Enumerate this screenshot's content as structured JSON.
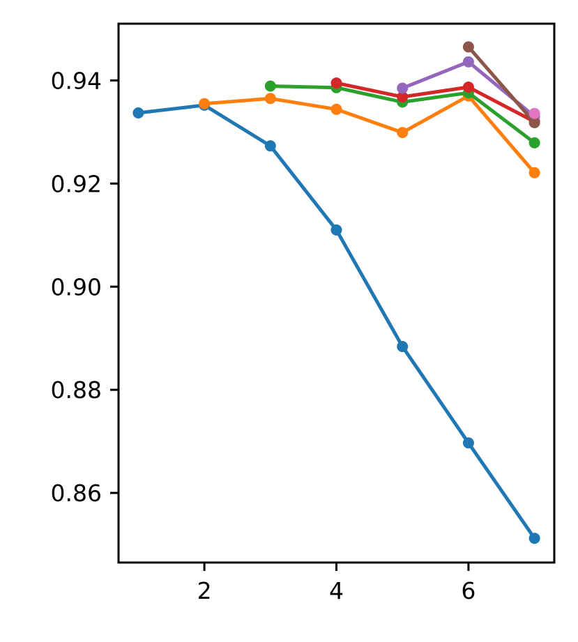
{
  "chart_data": {
    "type": "line",
    "title": "",
    "xlabel": "",
    "ylabel": "",
    "xlim": [
      0.7,
      7.3
    ],
    "ylim": [
      0.8465,
      0.951
    ],
    "xticks": [
      2,
      4,
      6
    ],
    "yticks": [
      0.86,
      0.88,
      0.9,
      0.92,
      0.94
    ],
    "xtick_labels": [
      "2",
      "4",
      "6"
    ],
    "ytick_labels": [
      "0.86",
      "0.88",
      "0.90",
      "0.92",
      "0.94"
    ],
    "grid": false,
    "legend": "none",
    "series": [
      {
        "color": "#1f77b4",
        "x": [
          1,
          2,
          3,
          4,
          5,
          6,
          7
        ],
        "y": [
          0.9337,
          0.9352,
          0.9273,
          0.911,
          0.8884,
          0.8697,
          0.8512
        ]
      },
      {
        "color": "#ff7f0e",
        "x": [
          2,
          3,
          4,
          5,
          6,
          7
        ],
        "y": [
          0.9355,
          0.9365,
          0.9344,
          0.9299,
          0.937,
          0.9221
        ]
      },
      {
        "color": "#2ca02c",
        "x": [
          3,
          4,
          5,
          6,
          7
        ],
        "y": [
          0.9389,
          0.9386,
          0.9358,
          0.9376,
          0.9279
        ]
      },
      {
        "color": "#d62728",
        "x": [
          4,
          5,
          6,
          7
        ],
        "y": [
          0.9395,
          0.9368,
          0.9387,
          0.932
        ]
      },
      {
        "color": "#9467bd",
        "x": [
          5,
          6,
          7
        ],
        "y": [
          0.9385,
          0.9436,
          0.933
        ]
      },
      {
        "color": "#8c564b",
        "x": [
          6,
          7
        ],
        "y": [
          0.9465,
          0.9318
        ]
      },
      {
        "color": "#e377c2",
        "x": [
          7
        ],
        "y": [
          0.9336
        ]
      }
    ]
  }
}
